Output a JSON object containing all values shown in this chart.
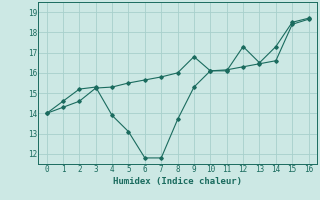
{
  "xlabel": "Humidex (Indice chaleur)",
  "x": [
    0,
    1,
    2,
    3,
    4,
    5,
    6,
    7,
    8,
    9,
    10,
    11,
    12,
    13,
    14,
    15,
    16
  ],
  "y_line": [
    14.0,
    14.6,
    15.2,
    15.3,
    13.9,
    13.1,
    11.8,
    11.8,
    13.7,
    15.3,
    16.1,
    16.1,
    17.3,
    16.5,
    17.3,
    18.5,
    18.7
  ],
  "y_trend": [
    14.0,
    14.3,
    14.6,
    15.25,
    15.3,
    15.5,
    15.65,
    15.8,
    16.0,
    16.8,
    16.1,
    16.15,
    16.3,
    16.45,
    16.6,
    18.4,
    18.65
  ],
  "line_color": "#1a6b5e",
  "bg_color": "#cce8e4",
  "grid_color": "#a8d0cc",
  "ylim": [
    11.5,
    19.5
  ],
  "xlim": [
    -0.5,
    16.5
  ],
  "yticks": [
    12,
    13,
    14,
    15,
    16,
    17,
    18,
    19
  ],
  "xticks": [
    0,
    1,
    2,
    3,
    4,
    5,
    6,
    7,
    8,
    9,
    10,
    11,
    12,
    13,
    14,
    15,
    16
  ]
}
